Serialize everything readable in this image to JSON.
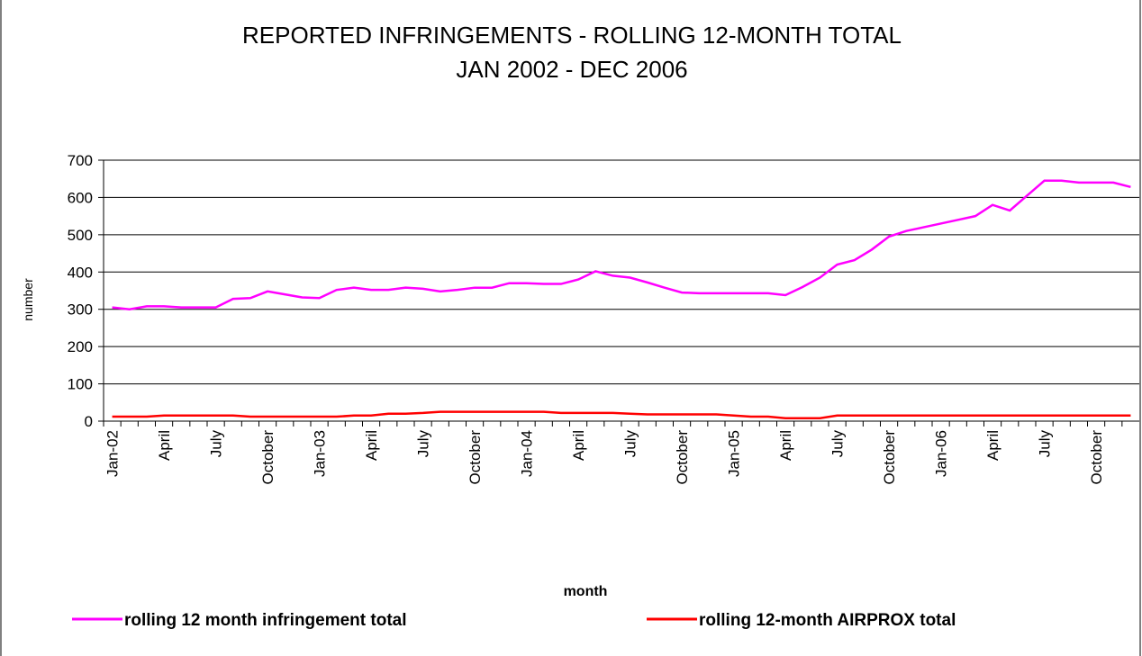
{
  "chart_data": {
    "type": "line",
    "title": "REPORTED INFRINGEMENTS - ROLLING 12-MONTH TOTAL",
    "subtitle": "JAN 2002 - DEC 2006",
    "x_label": "month",
    "y_label": "number",
    "categories": [
      "Jan-02",
      null,
      null,
      "April",
      null,
      null,
      "July",
      null,
      null,
      "October",
      null,
      null,
      "Jan-03",
      null,
      null,
      "April",
      null,
      null,
      "July",
      null,
      null,
      "October",
      null,
      null,
      "Jan-04",
      null,
      null,
      "April",
      null,
      null,
      "July",
      null,
      null,
      "October",
      null,
      null,
      "Jan-05",
      null,
      null,
      "April",
      null,
      null,
      "July",
      null,
      null,
      "October",
      null,
      null,
      "Jan-06",
      null,
      null,
      "April",
      null,
      null,
      "July",
      null,
      null,
      "October",
      null,
      null
    ],
    "series": [
      {
        "name": "rolling 12 month infringement total",
        "color": "#ff00ff",
        "values": [
          305,
          300,
          308,
          308,
          305,
          305,
          305,
          328,
          330,
          348,
          340,
          332,
          330,
          352,
          358,
          352,
          352,
          358,
          355,
          348,
          352,
          358,
          358,
          370,
          370,
          368,
          368,
          380,
          402,
          390,
          385,
          372,
          358,
          345,
          343,
          343,
          343,
          343,
          343,
          338,
          360,
          385,
          420,
          432,
          460,
          495,
          510,
          520,
          530,
          540,
          550,
          580,
          565,
          605,
          645,
          645,
          640,
          640,
          640,
          628
        ]
      },
      {
        "name": "rolling 12-month AIRPROX total",
        "color": "#ff0000",
        "values": [
          12,
          12,
          12,
          15,
          15,
          15,
          15,
          15,
          12,
          12,
          12,
          12,
          12,
          12,
          15,
          15,
          20,
          20,
          22,
          25,
          25,
          25,
          25,
          25,
          25,
          25,
          22,
          22,
          22,
          22,
          20,
          18,
          18,
          18,
          18,
          18,
          15,
          12,
          12,
          8,
          8,
          8,
          15,
          15,
          15,
          15,
          15,
          15,
          15,
          15,
          15,
          15,
          15,
          15,
          15,
          15,
          15,
          15,
          15,
          15
        ]
      }
    ],
    "ylim": [
      0,
      700
    ],
    "yticks": [
      0,
      100,
      200,
      300,
      400,
      500,
      600,
      700
    ],
    "grid": true
  }
}
